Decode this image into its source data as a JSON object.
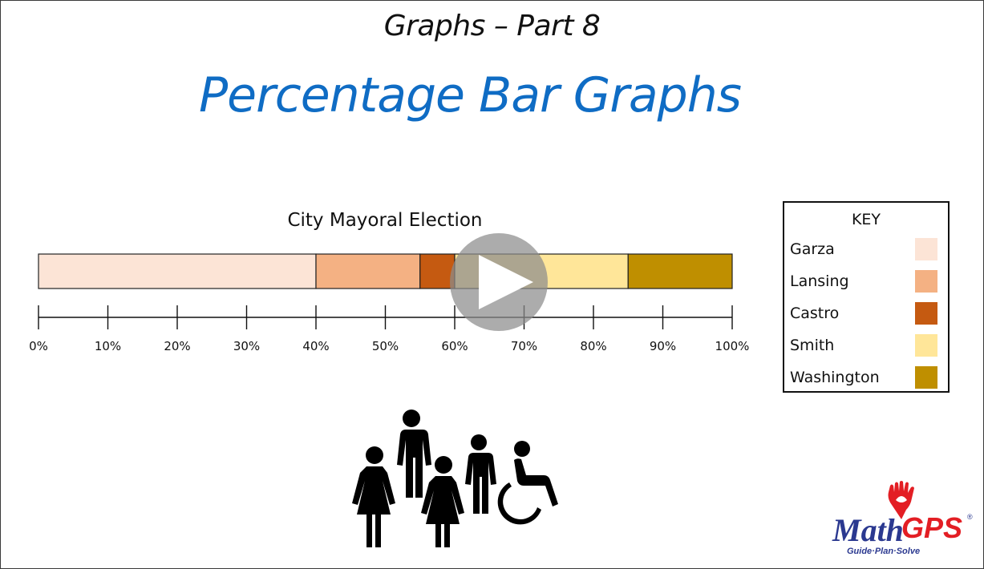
{
  "header": {
    "subtitle": "Graphs – Part 8",
    "title": "Percentage Bar Graphs"
  },
  "chart_data": {
    "type": "bar",
    "orientation": "horizontal-stacked-100",
    "title": "City Mayoral Election",
    "xlim": [
      0,
      100
    ],
    "x_ticks": [
      "0%",
      "10%",
      "20%",
      "30%",
      "40%",
      "50%",
      "60%",
      "70%",
      "80%",
      "90%",
      "100%"
    ],
    "series": [
      {
        "name": "Garza",
        "start": 0,
        "end": 40,
        "value": 40,
        "color": "#fce4d6"
      },
      {
        "name": "Lansing",
        "start": 40,
        "end": 55,
        "value": 15,
        "color": "#f4b183"
      },
      {
        "name": "Castro",
        "start": 55,
        "end": 60,
        "value": 5,
        "color": "#c55a11"
      },
      {
        "name": "Smith",
        "start": 60,
        "end": 85,
        "value": 25,
        "color": "#ffe699"
      },
      {
        "name": "Washington",
        "start": 85,
        "end": 100,
        "value": 15,
        "color": "#bf8f00"
      }
    ],
    "legend": {
      "title": "KEY",
      "position": "right"
    },
    "grid": false
  },
  "colors": {
    "title_blue": "#0f6cc4",
    "logo_red": "#e31e24",
    "logo_blue": "#2b3990"
  },
  "play_button": {
    "icon": "play-icon"
  },
  "illustration": {
    "icon": "people-group-icon"
  },
  "logo": {
    "math": "Math",
    "gps": "GPS",
    "tagline": "Guide·Plan·Solve",
    "registered": "®"
  }
}
